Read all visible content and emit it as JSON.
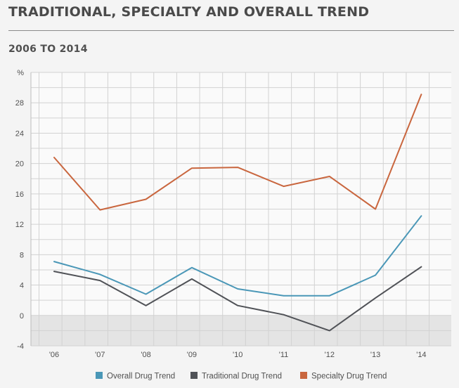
{
  "header": {
    "title": "TRADITIONAL, SPECIALTY AND OVERALL TREND",
    "subtitle": "2006 TO 2014"
  },
  "colors": {
    "overall": "#4a97b7",
    "traditional": "#505257",
    "specialty": "#c9663e",
    "grid": "#d2d2d2",
    "negative_band": "#e4e4e4",
    "plot_bg": "#fafafa"
  },
  "chart_data": {
    "type": "line",
    "title": "TRADITIONAL, SPECIALTY AND OVERALL TREND",
    "subtitle": "2006 TO 2014",
    "categories": [
      "'06",
      "'07",
      "'08",
      "'09",
      "'10",
      "'11",
      "'12",
      "'13",
      "'14"
    ],
    "y_unit_label": "%",
    "yticks": [
      -4,
      0,
      4,
      8,
      12,
      16,
      20,
      24,
      28
    ],
    "ylim": [
      -4,
      32
    ],
    "grid": true,
    "legend_position": "bottom",
    "series": [
      {
        "name": "Overall Drug Trend",
        "color": "#4a97b7",
        "values": [
          7.1,
          5.4,
          2.8,
          6.3,
          3.5,
          2.6,
          2.6,
          5.3,
          13.1
        ]
      },
      {
        "name": "Traditional Drug Trend",
        "color": "#505257",
        "values": [
          5.8,
          4.6,
          1.3,
          4.8,
          1.3,
          0.1,
          -2.0,
          2.3,
          6.4
        ]
      },
      {
        "name": "Specialty Drug Trend",
        "color": "#c9663e",
        "values": [
          20.8,
          13.9,
          15.3,
          19.4,
          19.5,
          17.0,
          18.3,
          14.0,
          29.1
        ]
      }
    ]
  }
}
